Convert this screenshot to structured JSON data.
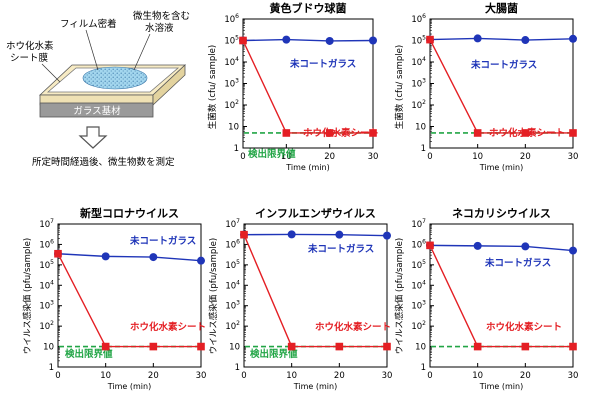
{
  "diagram": {
    "film_label": "フィルム密着",
    "solution_label_line1": "微生物を含む",
    "solution_label_line2": "水溶液",
    "sheet_label_line1": "ホウ化水素",
    "sheet_label_line2": "シート膜",
    "substrate_label": "ガラス基材",
    "caption": "所定時間経過後、微生物数を測定",
    "colors": {
      "glass": "#f7ebc4",
      "sheet": "#9a9a9a",
      "drop": "#a3d6ee",
      "drop_dots": "#3a76a8"
    }
  },
  "colors": {
    "uncoated": "#1f35b8",
    "sheet": "#e41f24",
    "limit": "#22a546"
  },
  "chart_data": [
    {
      "type": "line",
      "title": "黄色ブドウ球菌",
      "xlabel": "Time (min)",
      "ylabel": "生菌数 (cfu/ sample)",
      "x_ticks": [
        0,
        10,
        20,
        30
      ],
      "y_log": true,
      "ylim_exp": [
        0,
        6
      ],
      "y_ticks": [
        "1",
        "10",
        "10",
        "10",
        "10",
        "10",
        "10"
      ],
      "y_tick_sups": [
        "",
        "",
        "2",
        "3",
        "4",
        "5",
        "6"
      ],
      "series": [
        {
          "name": "未コートガラス",
          "x": [
            0,
            10,
            20,
            30
          ],
          "y": [
            100000,
            110000,
            95000,
            100000
          ]
        },
        {
          "name": "ホウ化水素シート",
          "x": [
            0,
            10,
            20,
            30
          ],
          "y": [
            100000,
            5,
            5,
            5
          ]
        }
      ],
      "limit": {
        "label": "検出限界値",
        "y": 5
      }
    },
    {
      "type": "line",
      "title": "大腸菌",
      "xlabel": "Time (min)",
      "ylabel": "生菌数 (cfu/ sample)",
      "x_ticks": [
        0,
        10,
        20,
        30
      ],
      "y_log": true,
      "ylim_exp": [
        0,
        6
      ],
      "y_ticks": [
        "1",
        "10",
        "10",
        "10",
        "10",
        "10",
        "10"
      ],
      "y_tick_sups": [
        "",
        "",
        "2",
        "3",
        "4",
        "5",
        "6"
      ],
      "series": [
        {
          "name": "未コートガラス",
          "x": [
            0,
            10,
            20,
            30
          ],
          "y": [
            110000,
            125000,
            105000,
            120000
          ]
        },
        {
          "name": "ホウ化水素シート",
          "x": [
            0,
            10,
            20,
            30
          ],
          "y": [
            110000,
            5,
            5,
            5
          ]
        }
      ],
      "limit": {
        "label": "",
        "y": 5
      }
    },
    {
      "type": "line",
      "title": "新型コロナウイルス",
      "xlabel": "Time (min)",
      "ylabel": "ウイルス感染価 (pfu/sample)",
      "x_ticks": [
        0,
        10,
        20,
        30
      ],
      "y_log": true,
      "ylim_exp": [
        0,
        7
      ],
      "y_ticks": [
        "1",
        "10",
        "10",
        "10",
        "10",
        "10",
        "10",
        "10"
      ],
      "y_tick_sups": [
        "",
        "",
        "2",
        "3",
        "4",
        "5",
        "6",
        "7"
      ],
      "series": [
        {
          "name": "未コートガラス",
          "x": [
            0,
            10,
            20,
            30
          ],
          "y": [
            350000,
            260000,
            240000,
            160000
          ]
        },
        {
          "name": "ホウ化水素シート",
          "x": [
            0,
            10,
            20,
            30
          ],
          "y": [
            350000,
            10,
            10,
            10
          ]
        }
      ],
      "limit": {
        "label": "検出限界値",
        "y": 10
      }
    },
    {
      "type": "line",
      "title": "インフルエンザウイルス",
      "xlabel": "Time (min)",
      "ylabel": "ウイルス感染価 (pfu/sample)",
      "x_ticks": [
        0,
        10,
        20,
        30
      ],
      "y_log": true,
      "ylim_exp": [
        0,
        7
      ],
      "y_ticks": [
        "1",
        "10",
        "10",
        "10",
        "10",
        "10",
        "10",
        "10"
      ],
      "y_tick_sups": [
        "",
        "",
        "2",
        "3",
        "4",
        "5",
        "6",
        "7"
      ],
      "series": [
        {
          "name": "未コートガラス",
          "x": [
            0,
            10,
            20,
            30
          ],
          "y": [
            3000000,
            3100000,
            3000000,
            2700000
          ]
        },
        {
          "name": "ホウ化水素シート",
          "x": [
            0,
            10,
            20,
            30
          ],
          "y": [
            3000000,
            10,
            10,
            10
          ]
        }
      ],
      "limit": {
        "label": "検出限界値",
        "y": 10
      }
    },
    {
      "type": "line",
      "title": "ネコカリシウイルス",
      "xlabel": "Time (min)",
      "ylabel": "ウイルス感染価 (pfu/sample)",
      "x_ticks": [
        0,
        10,
        20,
        30
      ],
      "y_log": true,
      "ylim_exp": [
        0,
        7
      ],
      "y_ticks": [
        "1",
        "10",
        "10",
        "10",
        "10",
        "10",
        "10",
        "10"
      ],
      "y_tick_sups": [
        "",
        "",
        "2",
        "3",
        "4",
        "5",
        "6",
        "7"
      ],
      "series": [
        {
          "name": "未コートガラス",
          "x": [
            0,
            10,
            20,
            30
          ],
          "y": [
            900000,
            850000,
            800000,
            500000
          ]
        },
        {
          "name": "ホウ化水素シート",
          "x": [
            0,
            10,
            20,
            30
          ],
          "y": [
            900000,
            10,
            10,
            10
          ]
        }
      ],
      "limit": {
        "label": "",
        "y": 10
      }
    }
  ]
}
